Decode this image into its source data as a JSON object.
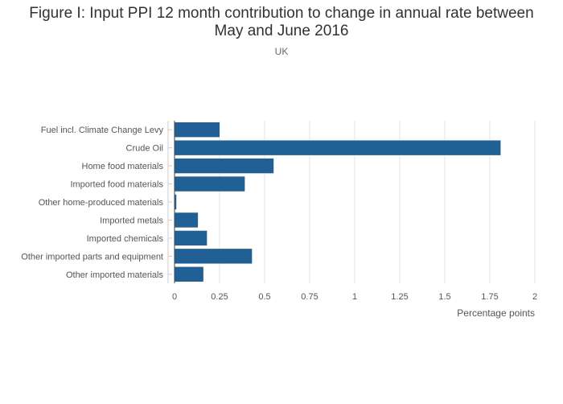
{
  "chart_data": {
    "type": "bar",
    "orientation": "horizontal",
    "title_lines": [
      "Figure I: Input PPI 12 month contribution to change in annual rate between",
      "May and June 2016"
    ],
    "subtitle": "UK",
    "categories": [
      "Fuel incl. Climate Change Levy",
      "Crude Oil",
      "Home food materials",
      "Imported food materials",
      "Other home-produced materials",
      "Imported metals",
      "Imported chemicals",
      "Other imported parts and equipment",
      "Other imported materials"
    ],
    "values": [
      0.25,
      1.81,
      0.55,
      0.39,
      0.01,
      0.13,
      0.18,
      0.43,
      0.16
    ],
    "xlabel": "Percentage points",
    "ylabel": "",
    "xlim": [
      0,
      2
    ],
    "xticks": [
      0,
      0.25,
      0.5,
      0.75,
      1,
      1.25,
      1.5,
      1.75,
      2
    ],
    "xtick_labels": [
      "0",
      "0.25",
      "0.5",
      "0.75",
      "1",
      "1.25",
      "1.5",
      "1.75",
      "2"
    ],
    "grid": true,
    "legend": "none",
    "colors": {
      "bar": "#206095",
      "grid": "#e6e6e6",
      "axis": "#cccccc"
    }
  }
}
